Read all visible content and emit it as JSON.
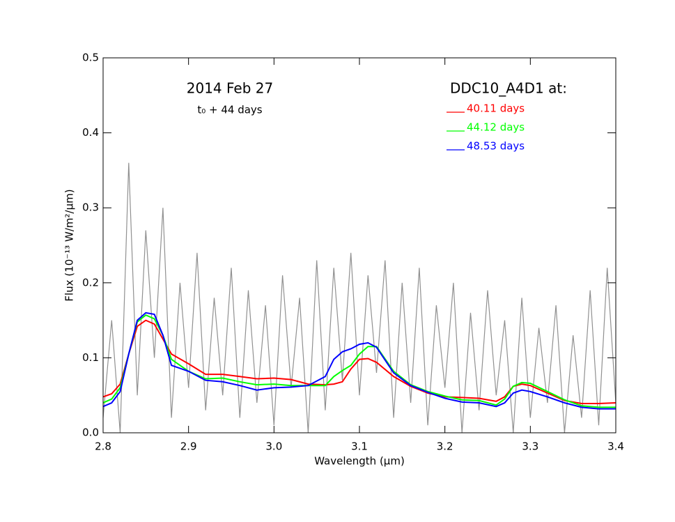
{
  "chart_data": {
    "type": "line",
    "title": "2014 Feb 27",
    "annotation": "t₀ + 44 days",
    "legend_title": "DDC10_A4D1 at:",
    "x_label": "Wavelength (μm)",
    "y_label": "Flux (10⁻¹³ W/m²/μm)",
    "xlim": [
      2.8,
      3.4
    ],
    "ylim": [
      0,
      0.5
    ],
    "xticks": [
      2.8,
      2.9,
      {
        "value": 3,
        "label": "3.0"
      },
      3.1,
      3.2,
      3.3,
      3.4
    ],
    "yticks": [
      {
        "value": 0,
        "label": "0.0"
      },
      0.1,
      0.2,
      0.3,
      0.4,
      0.5
    ],
    "legend": "upper right",
    "x": [
      2.8,
      2.81,
      2.82,
      2.83,
      2.84,
      2.85,
      2.86,
      2.87,
      2.88,
      2.9,
      2.92,
      2.94,
      2.96,
      2.98,
      3.0,
      3.02,
      3.04,
      3.06,
      3.07,
      3.08,
      3.09,
      3.1,
      3.11,
      3.12,
      3.14,
      3.16,
      3.18,
      3.2,
      3.22,
      3.24,
      3.26,
      3.27,
      3.28,
      3.29,
      3.3,
      3.32,
      3.34,
      3.36,
      3.38,
      3.4
    ],
    "observed": {
      "color": "#909090",
      "x": [
        2.8,
        2.81,
        2.82,
        2.83,
        2.84,
        2.85,
        2.86,
        2.87,
        2.88,
        2.89,
        2.9,
        2.91,
        2.92,
        2.93,
        2.94,
        2.95,
        2.96,
        2.97,
        2.98,
        2.99,
        3.0,
        3.01,
        3.02,
        3.03,
        3.04,
        3.05,
        3.06,
        3.07,
        3.08,
        3.09,
        3.1,
        3.11,
        3.12,
        3.13,
        3.14,
        3.15,
        3.16,
        3.17,
        3.18,
        3.19,
        3.2,
        3.21,
        3.22,
        3.23,
        3.24,
        3.25,
        3.26,
        3.27,
        3.28,
        3.29,
        3.3,
        3.31,
        3.32,
        3.33,
        3.34,
        3.35,
        3.36,
        3.37,
        3.38,
        3.39,
        3.4
      ],
      "values": [
        0.02,
        0.15,
        0.0,
        0.36,
        0.05,
        0.27,
        0.1,
        0.3,
        0.02,
        0.2,
        0.06,
        0.24,
        0.03,
        0.18,
        0.05,
        0.22,
        0.02,
        0.19,
        0.04,
        0.17,
        0.01,
        0.21,
        0.06,
        0.18,
        0.0,
        0.23,
        0.03,
        0.22,
        0.07,
        0.24,
        0.05,
        0.21,
        0.08,
        0.23,
        0.02,
        0.2,
        0.04,
        0.22,
        0.01,
        0.17,
        0.06,
        0.2,
        0.0,
        0.16,
        0.03,
        0.19,
        0.05,
        0.15,
        0.0,
        0.18,
        0.02,
        0.14,
        0.04,
        0.17,
        0.0,
        0.13,
        0.02,
        0.19,
        0.01,
        0.22,
        0.04
      ]
    },
    "series": [
      {
        "name": "40.11 days",
        "color": "#ff0000",
        "values": [
          0.048,
          0.052,
          0.065,
          0.105,
          0.142,
          0.15,
          0.145,
          0.125,
          0.105,
          0.092,
          0.078,
          0.078,
          0.075,
          0.072,
          0.073,
          0.071,
          0.065,
          0.064,
          0.065,
          0.068,
          0.085,
          0.098,
          0.099,
          0.094,
          0.075,
          0.062,
          0.053,
          0.048,
          0.047,
          0.046,
          0.042,
          0.048,
          0.062,
          0.065,
          0.063,
          0.053,
          0.043,
          0.039,
          0.039,
          0.04
        ]
      },
      {
        "name": "44.12 days",
        "color": "#00ff00",
        "values": [
          0.04,
          0.045,
          0.06,
          0.105,
          0.148,
          0.157,
          0.152,
          0.13,
          0.098,
          0.082,
          0.072,
          0.073,
          0.068,
          0.064,
          0.065,
          0.063,
          0.063,
          0.063,
          0.075,
          0.083,
          0.09,
          0.105,
          0.115,
          0.115,
          0.082,
          0.064,
          0.055,
          0.049,
          0.044,
          0.043,
          0.037,
          0.045,
          0.062,
          0.067,
          0.066,
          0.055,
          0.044,
          0.036,
          0.034,
          0.034
        ]
      },
      {
        "name": "48.53 days",
        "color": "#0000ff",
        "values": [
          0.035,
          0.04,
          0.055,
          0.105,
          0.15,
          0.16,
          0.158,
          0.13,
          0.09,
          0.082,
          0.07,
          0.068,
          0.063,
          0.057,
          0.06,
          0.061,
          0.063,
          0.075,
          0.098,
          0.108,
          0.112,
          0.118,
          0.12,
          0.114,
          0.08,
          0.063,
          0.054,
          0.046,
          0.041,
          0.04,
          0.035,
          0.04,
          0.053,
          0.057,
          0.055,
          0.048,
          0.04,
          0.034,
          0.032,
          0.032
        ]
      }
    ]
  }
}
